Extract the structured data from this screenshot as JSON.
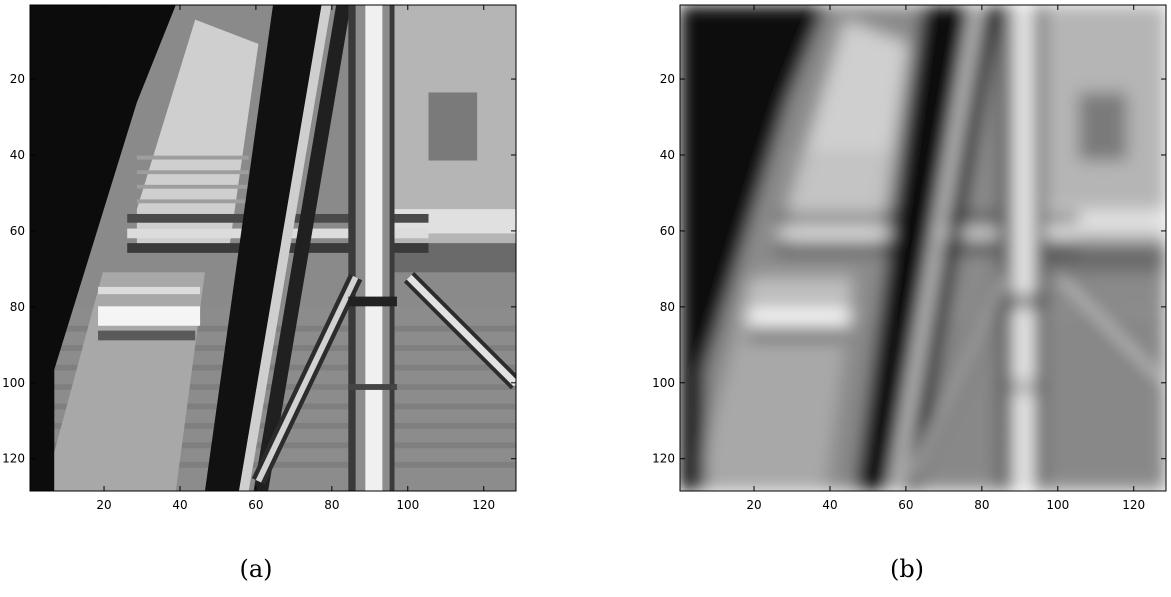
{
  "figures": [
    {
      "id": "a",
      "caption": "(a)",
      "description": "sharp grayscale image of pole and crossbars",
      "x_ticks": [
        "20",
        "40",
        "60",
        "80",
        "100",
        "120"
      ],
      "y_ticks": [
        "20",
        "40",
        "60",
        "80",
        "100",
        "120"
      ],
      "x_range": [
        0.5,
        128.5
      ],
      "y_range": [
        0.5,
        128.5
      ],
      "blur": 0
    },
    {
      "id": "b",
      "caption": "(b)",
      "description": "blurred grayscale image of pole and crossbars",
      "x_ticks": [
        "20",
        "40",
        "60",
        "80",
        "100",
        "120"
      ],
      "y_ticks": [
        "20",
        "40",
        "60",
        "80",
        "100",
        "120"
      ],
      "x_range": [
        0.5,
        128.5
      ],
      "y_range": [
        0.5,
        128.5
      ],
      "blur": 2.2
    }
  ]
}
